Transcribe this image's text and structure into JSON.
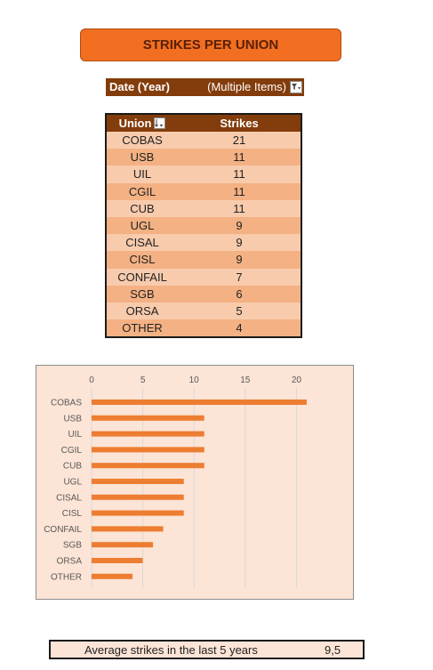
{
  "title": "STRIKES PER UNION",
  "filter": {
    "label": "Date (Year)",
    "value": "(Multiple Items)",
    "icon": "filter-dropdown-icon"
  },
  "pivot": {
    "headers": [
      "Union",
      "Strikes"
    ],
    "sort_icon": "sort-descending-icon",
    "rows": [
      {
        "union": "COBAS",
        "strikes": "21"
      },
      {
        "union": "USB",
        "strikes": "11"
      },
      {
        "union": "UIL",
        "strikes": "11"
      },
      {
        "union": "CGIL",
        "strikes": "11"
      },
      {
        "union": "CUB",
        "strikes": "11"
      },
      {
        "union": "UGL",
        "strikes": "9"
      },
      {
        "union": "CISAL",
        "strikes": "9"
      },
      {
        "union": "CISL",
        "strikes": "9"
      },
      {
        "union": "CONFAIL",
        "strikes": "7"
      },
      {
        "union": "SGB",
        "strikes": "6"
      },
      {
        "union": "ORSA",
        "strikes": "5"
      },
      {
        "union": "OTHER",
        "strikes": "4"
      }
    ]
  },
  "chart_data": {
    "type": "bar",
    "orientation": "horizontal",
    "categories": [
      "COBAS",
      "USB",
      "UIL",
      "CGIL",
      "CUB",
      "UGL",
      "CISAL",
      "CISL",
      "CONFAIL",
      "SGB",
      "ORSA",
      "OTHER"
    ],
    "values": [
      21,
      11,
      11,
      11,
      11,
      9,
      9,
      9,
      7,
      6,
      5,
      4
    ],
    "xlim": [
      0,
      25
    ],
    "xticks": [
      0,
      5,
      10,
      15,
      20
    ],
    "x_axis_position": "top",
    "grid": true,
    "legend": "none",
    "colors": {
      "bar": "#ed7d31",
      "background": "#fce4d6",
      "grid": "#d9d9d9"
    }
  },
  "average": {
    "label": "Average strikes in the last 5 years",
    "value": "9,5"
  },
  "colors": {
    "title_bg": "#f26f21",
    "header_bg": "#833c0b",
    "row_light": "#f8cbad",
    "row_dark": "#f4b183"
  }
}
